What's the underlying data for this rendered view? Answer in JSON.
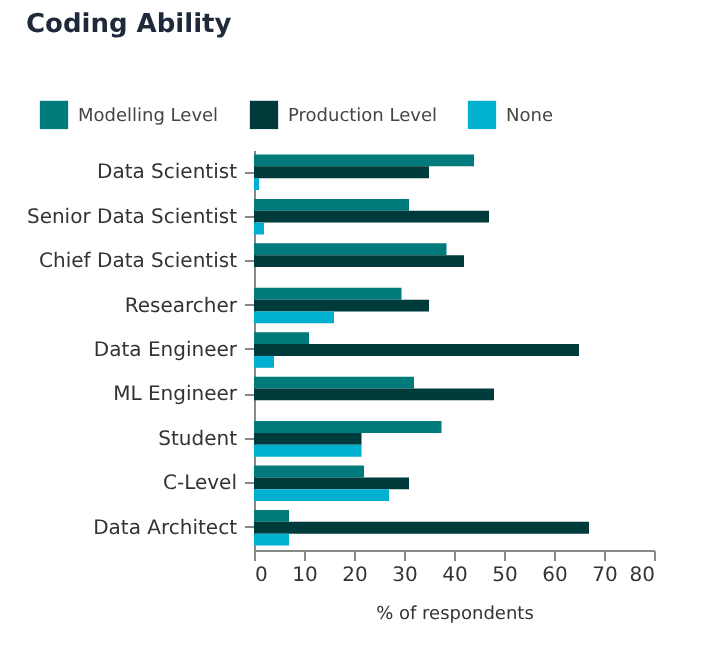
{
  "chart_data": {
    "type": "bar",
    "orientation": "horizontal",
    "title": "Coding Ability",
    "xlabel": "% of respondents",
    "categories": [
      "Data Scientist",
      "Senior Data Scientist",
      "Chief Data Scientist",
      "Researcher",
      "Data Engineer",
      "ML Engineer",
      "Student",
      "C-Level",
      "Data Architect"
    ],
    "series": [
      {
        "name": "Modelling Level",
        "color": "#007a7a",
        "values": [
          44,
          31,
          38.5,
          29.5,
          11,
          32,
          37.5,
          22,
          7
        ]
      },
      {
        "name": "Production Level",
        "color": "#003b3b",
        "values": [
          35,
          47,
          42,
          35,
          65,
          48,
          21.5,
          31,
          67
        ]
      },
      {
        "name": "None",
        "color": "#00b0d0",
        "values": [
          1,
          2,
          0,
          16,
          4,
          0,
          21.5,
          27,
          7
        ]
      }
    ],
    "xlim": [
      0,
      80
    ],
    "xticks": [
      0,
      10,
      20,
      30,
      40,
      50,
      60,
      70,
      80
    ],
    "grid": false,
    "legend": "top left"
  }
}
